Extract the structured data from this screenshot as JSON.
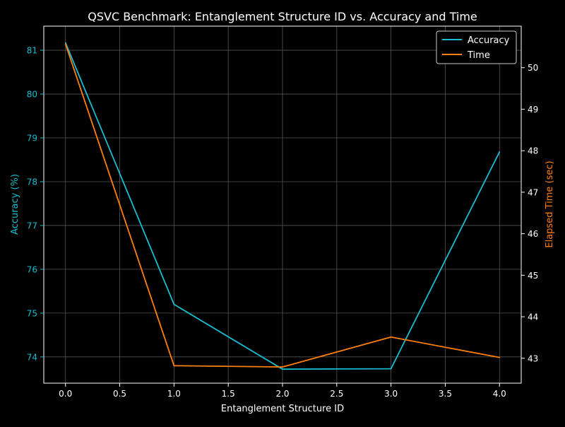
{
  "chart_data": {
    "type": "line",
    "title": "QSVC Benchmark: Entanglement Structure ID vs. Accuracy and Time",
    "xlabel": "Entanglement Structure ID",
    "ylabel_left": "Accuracy (%)",
    "ylabel_right": "Elapsed Time (sec)",
    "x": [
      0,
      1,
      2,
      3,
      4
    ],
    "xlim": [
      -0.2,
      4.2
    ],
    "xticks": [
      "0.0",
      "0.5",
      "1.0",
      "1.5",
      "2.0",
      "2.5",
      "3.0",
      "3.5",
      "4.0"
    ],
    "ylim_left": [
      73.4,
      81.55
    ],
    "ylim_right": [
      42.4,
      51.0
    ],
    "yticks_left": [
      "74",
      "75",
      "76",
      "77",
      "78",
      "79",
      "80",
      "81"
    ],
    "yticks_right": [
      "43",
      "44",
      "45",
      "46",
      "47",
      "48",
      "49",
      "50"
    ],
    "grid": true,
    "legend_position": "upper right",
    "series": [
      {
        "name": "Accuracy",
        "axis": "left",
        "color": "#17becf",
        "values": [
          81.17,
          75.2,
          73.72,
          73.73,
          78.68
        ]
      },
      {
        "name": "Time",
        "axis": "right",
        "color": "#ff7f0e",
        "values": [
          50.57,
          42.82,
          42.79,
          43.51,
          43.02
        ]
      }
    ],
    "colors": {
      "background": "#000000",
      "axes": "#ffffff",
      "grid": "#555555",
      "left_axis": "#17becf",
      "right_axis": "#ff7f0e"
    }
  }
}
